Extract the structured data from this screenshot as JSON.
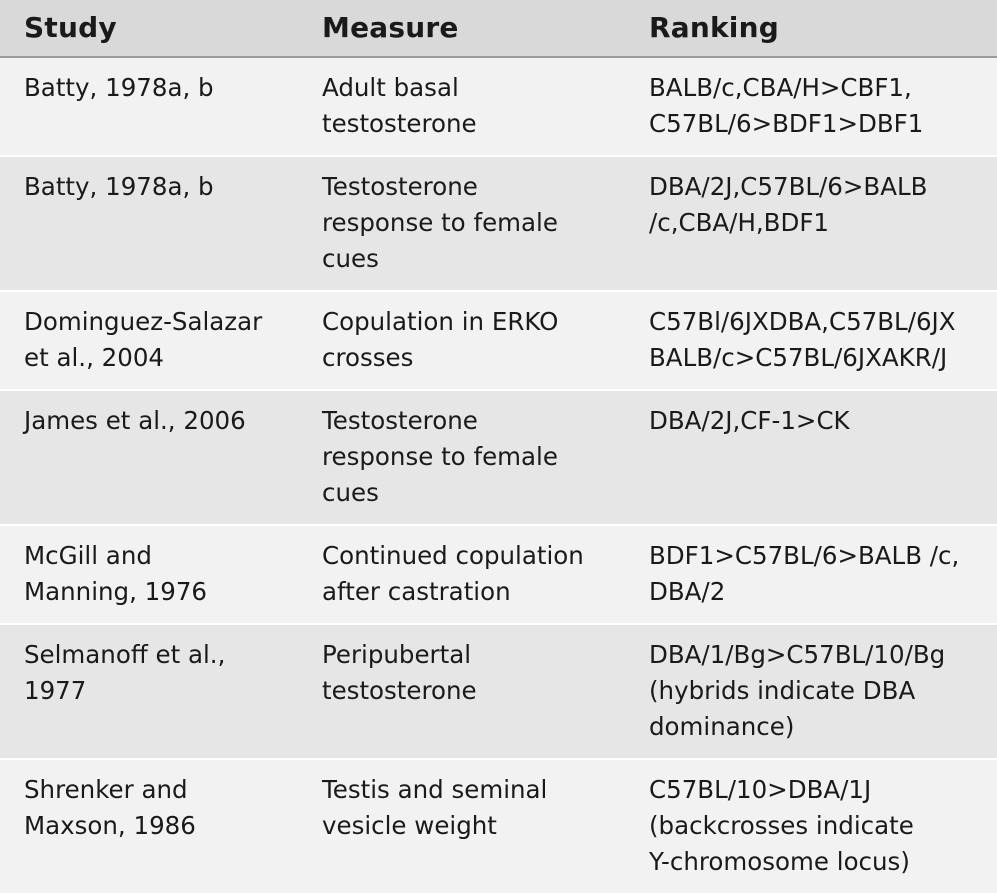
{
  "table": {
    "headers": {
      "study": "Study",
      "measure": "Measure",
      "ranking": "Ranking"
    },
    "rows": [
      {
        "study": [
          "Batty, 1978a, b"
        ],
        "measure": [
          "Adult basal",
          "testosterone"
        ],
        "ranking": [
          "BALB/c,CBA/H>CBF1,",
          "C57BL/6>BDF1>DBF1"
        ]
      },
      {
        "study": [
          "Batty, 1978a, b"
        ],
        "measure": [
          "Testosterone",
          "response to female",
          "cues"
        ],
        "ranking": [
          "DBA/2J,C57BL/6>BALB",
          "/c,CBA/H,BDF1"
        ]
      },
      {
        "study": [
          "Dominguez-Salazar",
          "et al., 2004"
        ],
        "measure": [
          "Copulation in ERKO",
          "crosses"
        ],
        "ranking": [
          "C57Bl/6JXDBA,C57BL/6JX",
          "BALB/c>C57BL/6JXAKR/J"
        ]
      },
      {
        "study": [
          "James et al., 2006"
        ],
        "measure": [
          "Testosterone",
          "response to female",
          "cues"
        ],
        "ranking": [
          "DBA/2J,CF-1>CK"
        ]
      },
      {
        "study": [
          "McGill and",
          "Manning, 1976"
        ],
        "measure": [
          "Continued copulation",
          "after castration"
        ],
        "ranking": [
          "BDF1>C57BL/6>BALB /c,",
          "DBA/2"
        ]
      },
      {
        "study": [
          "Selmanoff et al.,",
          "1977"
        ],
        "measure": [
          "Peripubertal",
          "testosterone"
        ],
        "ranking": [
          "DBA/1/Bg>C57BL/10/Bg",
          "(hybrids indicate DBA",
          "dominance)"
        ]
      },
      {
        "study": [
          "Shrenker and",
          "Maxson, 1986"
        ],
        "measure": [
          "Testis and seminal",
          "vesicle weight"
        ],
        "ranking": [
          "C57BL/10>DBA/1J",
          "(backcrosses indicate",
          "Y-chromosome locus)"
        ]
      }
    ]
  }
}
